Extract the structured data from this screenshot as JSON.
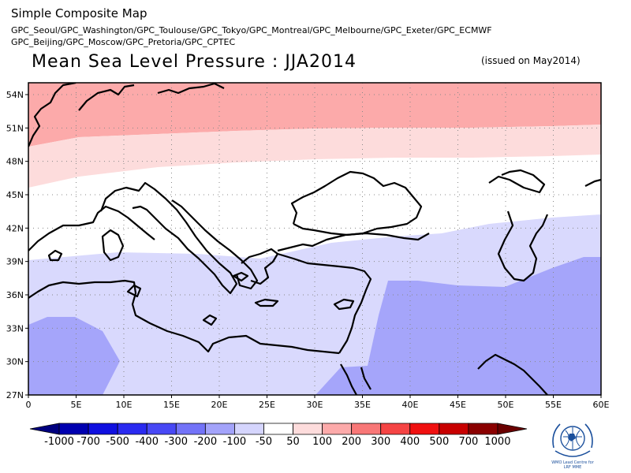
{
  "header": {
    "app_title": "Simple Composite Map",
    "models_line1": "GPC_Seoul/GPC_Washington/GPC_Toulouse/GPC_Tokyo/GPC_Montreal/GPC_Melbourne/GPC_Exeter/GPC_ECMWF",
    "models_line2": "GPC_Beijing/GPC_Moscow/GPC_Pretoria/GPC_CPTEC"
  },
  "map": {
    "title": "Mean Sea Level Pressure : JJA2014",
    "issued": "(issued on May2014)",
    "lon_ticks": [
      "0",
      "5E",
      "10E",
      "15E",
      "20E",
      "25E",
      "30E",
      "35E",
      "40E",
      "45E",
      "50E",
      "55E",
      "60E"
    ],
    "lat_ticks": [
      "54N",
      "51N",
      "48N",
      "45N",
      "42N",
      "39N",
      "36N",
      "33N",
      "30N",
      "27N"
    ]
  },
  "colorbar": {
    "labels": [
      "-1000",
      "-700",
      "-500",
      "-400",
      "-300",
      "-200",
      "-100",
      "-50",
      "50",
      "100",
      "200",
      "300",
      "400",
      "500",
      "700",
      "1000"
    ],
    "colors": [
      "#00007f",
      "#0000b0",
      "#1010e0",
      "#2a2af0",
      "#4848f5",
      "#7373f8",
      "#a3a3fa",
      "#d5d5fd",
      "#ffffff",
      "#fddcdc",
      "#fcaaaa",
      "#f87777",
      "#f54444",
      "#f01010",
      "#c80000",
      "#8a0000",
      "#6a0000"
    ]
  },
  "logo": {
    "caption_line1": "WMO Lead Centre for",
    "caption_line2": "LRF MME"
  }
}
